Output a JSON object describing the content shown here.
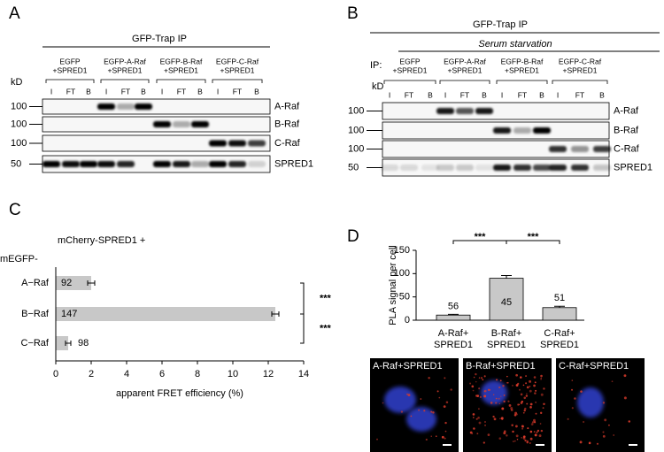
{
  "panel_a": {
    "letter": "A",
    "title": "GFP-Trap IP",
    "unit": "kD",
    "groups": [
      [
        "EGFP",
        "+SPRED1"
      ],
      [
        "EGFP-A-Raf",
        "+SPRED1"
      ],
      [
        "EGFP-B-Raf",
        "+SPRED1"
      ],
      [
        "EGFP-C-Raf",
        "+SPRED1"
      ]
    ],
    "lanes": [
      "I",
      "FT",
      "B"
    ],
    "blots": [
      {
        "label": "A-Raf",
        "mw": 100
      },
      {
        "label": "B-Raf",
        "mw": 100
      },
      {
        "label": "C-Raf",
        "mw": 100
      },
      {
        "label": "SPRED1",
        "mw": 50
      }
    ]
  },
  "panel_b": {
    "letter": "B",
    "title": "GFP-Trap IP",
    "condition": "Serum starvation",
    "ip": "IP:",
    "unit": "kD",
    "groups": [
      [
        "EGFP",
        "+SPRED1"
      ],
      [
        "EGFP-A-Raf",
        "+SPRED1"
      ],
      [
        "EGFP-B-Raf",
        "+SPRED1"
      ],
      [
        "EGFP-C-Raf",
        "+SPRED1"
      ]
    ],
    "lanes": [
      "I",
      "FT",
      "B"
    ],
    "blots": [
      {
        "label": "A-Raf",
        "mw": 100
      },
      {
        "label": "B-Raf",
        "mw": 100
      },
      {
        "label": "C-Raf",
        "mw": 100
      },
      {
        "label": "SPRED1",
        "mw": 50
      }
    ]
  },
  "chart_data": [
    {
      "type": "bar",
      "orientation": "horizontal",
      "letter": "C",
      "title": "mCherry-SPRED1 +",
      "subtitle": "mEGFP-",
      "categories": [
        "A−Raf",
        "B−Raf",
        "C−Raf"
      ],
      "values": [
        2.0,
        12.4,
        0.7
      ],
      "errors": [
        0.2,
        0.2,
        0.15
      ],
      "n": [
        92,
        147,
        98
      ],
      "color": "#c8c8c8",
      "xlim": [
        0,
        14
      ],
      "xticks": [
        0,
        2,
        4,
        6,
        8,
        10,
        12,
        14
      ],
      "xlabel": "apparent FRET efficiency (%)",
      "significance": [
        "***",
        "***"
      ]
    },
    {
      "type": "bar",
      "letter": "D",
      "categories": [
        [
          "A-Raf+",
          "SPRED1"
        ],
        [
          "B-Raf+",
          "SPRED1"
        ],
        [
          "C-Raf+",
          "SPRED1"
        ]
      ],
      "values": [
        11,
        90,
        27
      ],
      "errors": [
        1.5,
        6,
        3
      ],
      "n": [
        56,
        45,
        51
      ],
      "color": "#c8c8c8",
      "ylim": [
        0,
        150
      ],
      "yticks": [
        0,
        50,
        100,
        150
      ],
      "ylabel": "PLA signal per cell",
      "significance": [
        "***",
        "***"
      ]
    }
  ],
  "micrographs": [
    {
      "label": "A-Raf+SPRED1"
    },
    {
      "label": "B-Raf+SPRED1"
    },
    {
      "label": "C-Raf+SPRED1"
    }
  ]
}
